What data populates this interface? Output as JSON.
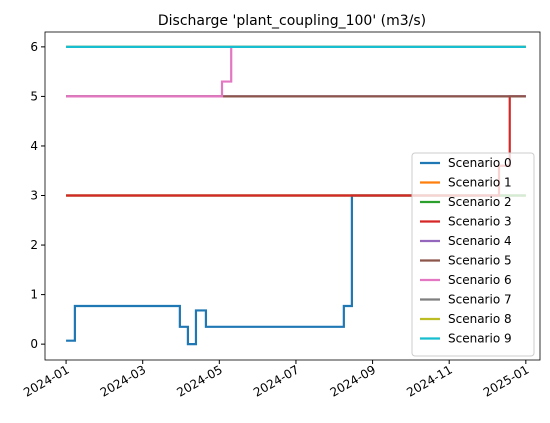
{
  "chart_data": {
    "type": "line",
    "title": "Discharge 'plant_coupling_100' (m3/s)",
    "xlim": [
      -0.55,
      12.37
    ],
    "xticks": [
      {
        "value": 0,
        "label": "2024-01"
      },
      {
        "value": 2,
        "label": "2024-03"
      },
      {
        "value": 4,
        "label": "2024-05"
      },
      {
        "value": 6,
        "label": "2024-07"
      },
      {
        "value": 8,
        "label": "2024-09"
      },
      {
        "value": 10,
        "label": "2024-11"
      },
      {
        "value": 12,
        "label": "2025-01"
      }
    ],
    "ylim": [
      -0.32,
      6.3
    ],
    "yticks": [
      0,
      1,
      2,
      3,
      4,
      5,
      6
    ],
    "legend": "lower right",
    "series": [
      {
        "name": "Scenario 0",
        "color": "#1f77b4",
        "x": [
          0,
          0.23,
          0.23,
          2.97,
          2.97,
          3.18,
          3.18,
          3.39,
          3.39,
          3.65,
          3.65,
          7.25,
          7.25,
          7.46,
          7.46,
          12
        ],
        "values": [
          0.07,
          0.07,
          0.77,
          0.77,
          0.35,
          0.35,
          0,
          0,
          0.68,
          0.68,
          0.35,
          0.35,
          0.77,
          0.77,
          3,
          3
        ]
      },
      {
        "name": "Scenario 1",
        "color": "#ff7f0e",
        "x": [
          0,
          12
        ],
        "values": [
          3,
          3
        ]
      },
      {
        "name": "Scenario 2",
        "color": "#2ca02c",
        "x": [
          0,
          12
        ],
        "values": [
          3,
          3
        ]
      },
      {
        "name": "Scenario 3",
        "color": "#d62728",
        "x": [
          0,
          11.3,
          11.3,
          11.58,
          11.58,
          12
        ],
        "values": [
          3,
          3,
          3.6,
          3.6,
          5,
          5
        ]
      },
      {
        "name": "Scenario 4",
        "color": "#9467bd",
        "x": [
          0,
          12
        ],
        "values": [
          5,
          5
        ]
      },
      {
        "name": "Scenario 5",
        "color": "#8c564b",
        "x": [
          0,
          12
        ],
        "values": [
          5,
          5
        ]
      },
      {
        "name": "Scenario 6",
        "color": "#e377c2",
        "x": [
          0,
          4.07,
          4.07,
          4.31,
          4.31,
          12
        ],
        "values": [
          5,
          5,
          5.3,
          5.3,
          6,
          6
        ]
      },
      {
        "name": "Scenario 7",
        "color": "#7f7f7f",
        "x": [
          0,
          12
        ],
        "values": [
          6,
          6
        ]
      },
      {
        "name": "Scenario 8",
        "color": "#bcbd22",
        "x": [
          0,
          12
        ],
        "values": [
          6,
          6
        ]
      },
      {
        "name": "Scenario 9",
        "color": "#17becf",
        "x": [
          0,
          12
        ],
        "values": [
          6,
          6
        ]
      }
    ]
  }
}
